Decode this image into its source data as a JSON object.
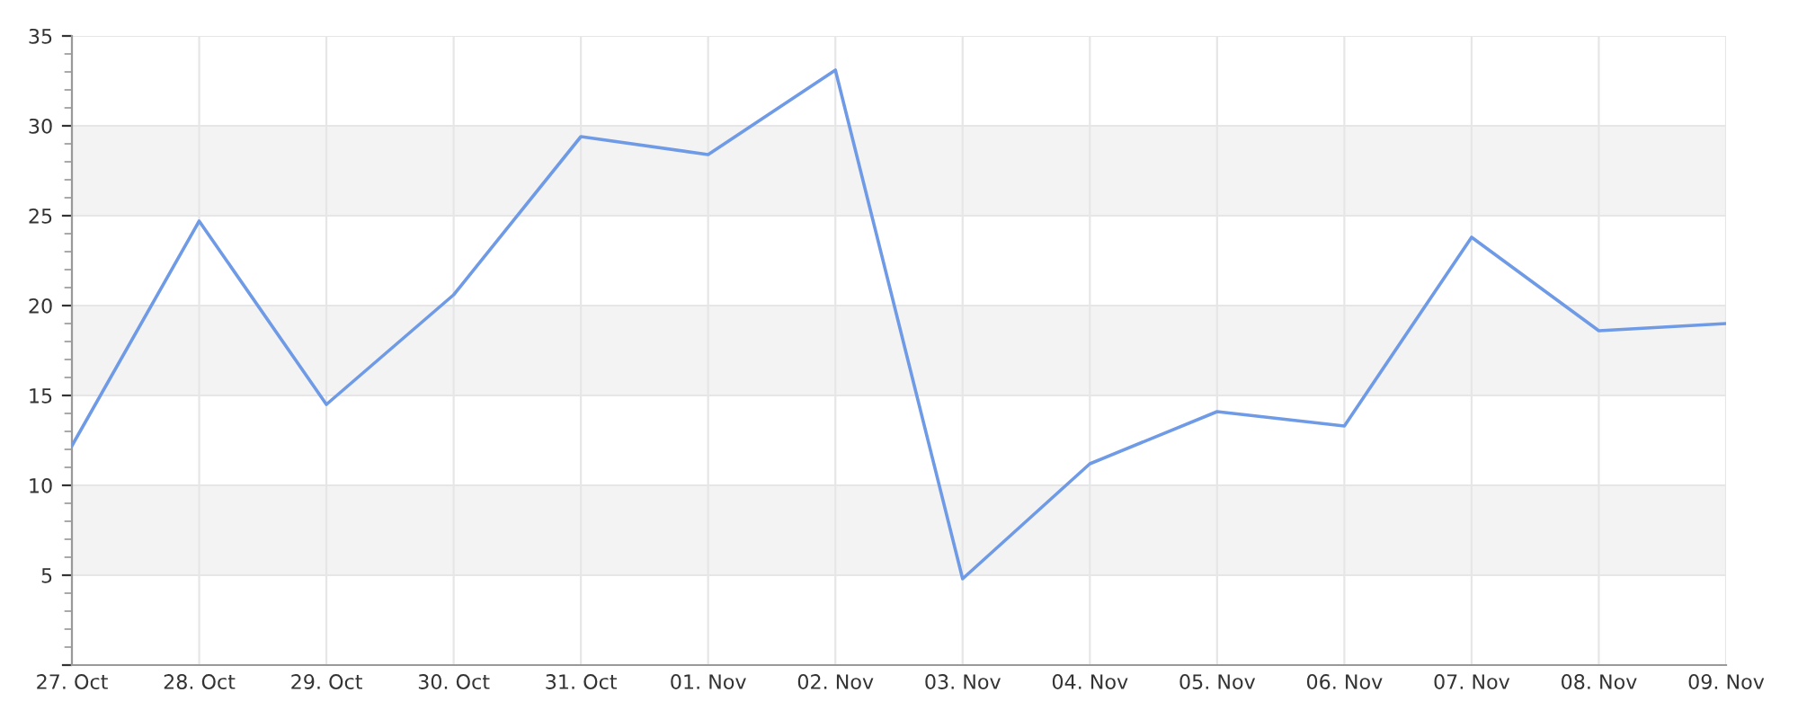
{
  "chart_data": {
    "type": "line",
    "categories": [
      "27. Oct",
      "28. Oct",
      "29. Oct",
      "30. Oct",
      "31. Oct",
      "01. Nov",
      "02. Nov",
      "03. Nov",
      "04. Nov",
      "05. Nov",
      "06. Nov",
      "07. Nov",
      "08. Nov",
      "09. Nov"
    ],
    "series": [
      {
        "color": "#6f9ae6",
        "values": [
          12.2,
          24.7,
          14.5,
          20.6,
          29.4,
          28.4,
          33.1,
          4.8,
          11.2,
          14.1,
          13.3,
          23.8,
          18.6,
          19.0
        ]
      }
    ],
    "ylim": [
      0,
      35
    ],
    "yticks": [
      {
        "value": 0,
        "label": null
      },
      5,
      10,
      15,
      20,
      25,
      30,
      35
    ],
    "bands": [
      {
        "axis": "y",
        "from": 5,
        "to": 10,
        "color": "#f3f3f3"
      },
      {
        "axis": "y",
        "from": 15,
        "to": 20,
        "color": "#f3f3f3"
      },
      {
        "axis": "y",
        "from": 25,
        "to": 30,
        "color": "#f3f3f3"
      }
    ],
    "grid": true,
    "legend": false,
    "marker": "none",
    "line_style": "solid"
  }
}
